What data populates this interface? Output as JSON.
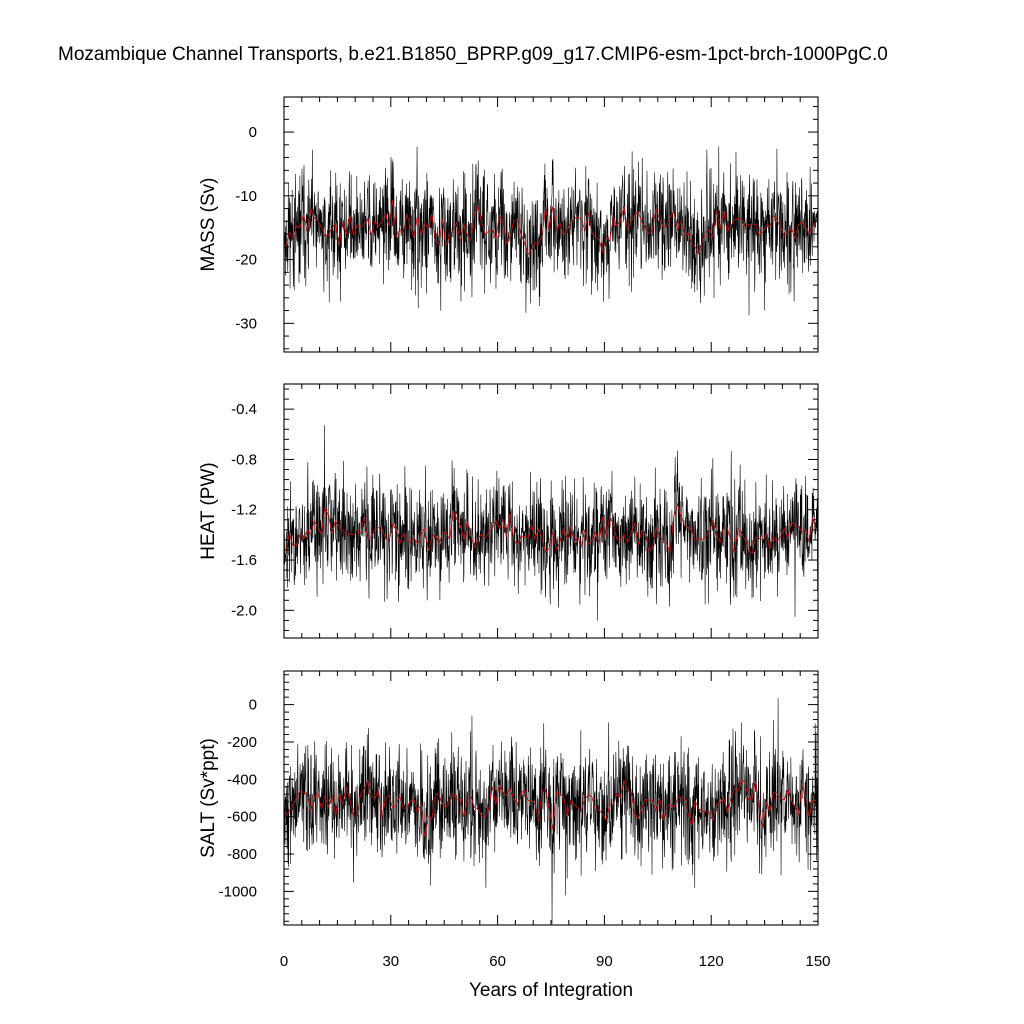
{
  "chart_data": {
    "type": "line",
    "title": "Mozambique Channel Transports, b.e21.B1850_BPRP.g09_g17.CMIP6-esm-1pct-brch-1000PgC.0",
    "xlabel": "Years of Integration",
    "xlim": [
      0,
      150
    ],
    "xticks": [
      "0",
      "30",
      "60",
      "90",
      "120",
      "150"
    ],
    "series_colors": {
      "monthly": "#000000",
      "annual": "#c01010"
    },
    "panels": [
      {
        "name": "mass",
        "ylabel": "MASS (Sv)",
        "ylim": [
          -34.5,
          5.5
        ],
        "yticks": [
          0,
          -10,
          -20,
          -30
        ],
        "ytick_labels": [
          "0",
          "-10",
          "-20",
          "-30"
        ],
        "mean": -15.0,
        "amp": 4.2,
        "seed": 11
      },
      {
        "name": "heat",
        "ylabel": "HEAT (PW)",
        "ylim": [
          -2.22,
          -0.2
        ],
        "yticks": [
          -0.4,
          -0.8,
          -1.2,
          -1.6,
          -2.0
        ],
        "ytick_labels": [
          "-0.4",
          "-0.8",
          "-1.2",
          "-1.6",
          "-2.0"
        ],
        "mean": -1.38,
        "amp": 0.21,
        "seed": 23
      },
      {
        "name": "salt",
        "ylabel": "SALT (Sv*ppt)",
        "ylim": [
          -1180,
          180
        ],
        "yticks": [
          0,
          -200,
          -400,
          -600,
          -800,
          -1000
        ],
        "ytick_labels": [
          "0",
          "-200",
          "-400",
          "-600",
          "-800",
          "-1000"
        ],
        "mean": -520,
        "amp": 145,
        "seed": 37
      }
    ]
  }
}
